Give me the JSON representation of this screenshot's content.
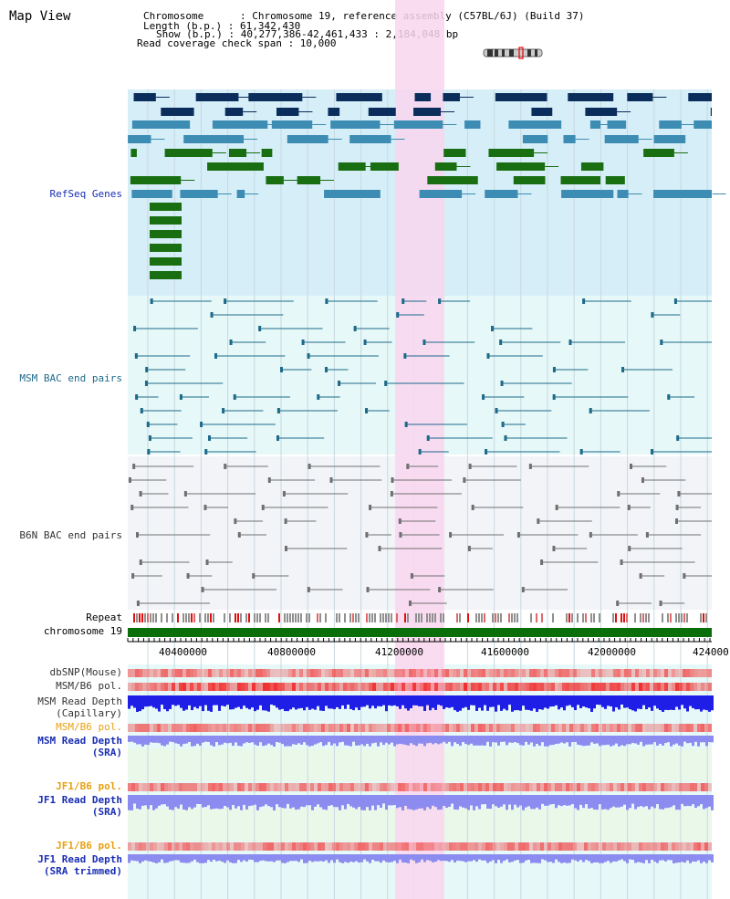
{
  "title": "Map View",
  "info": {
    "chromosome": "Chromosome      : Chromosome 19, reference assembly (C57BL/6J) (Build 37)",
    "length": "Length (b.p.) : 61,342,430",
    "show": "Show (b.p.) : 40,277,386-42,461,433 : 2,184,048 bp",
    "coverage": "Read coverage check span : 10,000"
  },
  "tracks": {
    "refseq": "RefSeq Genes",
    "msm_bac": "MSM BAC end pairs",
    "b6n_bac": "B6N BAC end pairs",
    "repeat": "Repeat",
    "chromosome": "chromosome 19",
    "dbsnp": "dbSNP(Mouse)",
    "msm_b6_pol": "MSM/B6 pol.",
    "msm_depth_cap": "MSM Read Depth",
    "msm_depth_cap2": "(Capillary)",
    "msm_b6_pol2": "MSM/B6 pol.",
    "msm_depth_sra": "MSM Read Depth",
    "msm_depth_sra2": "(SRA)",
    "jf1_b6_pol": "JF1/B6 pol.",
    "jf1_depth_sra": "JF1 Read Depth",
    "jf1_depth_sra2": "(SRA)",
    "jf1_b6_pol2": "JF1/B6 pol.",
    "jf1_depth_trim": "JF1 Read Depth",
    "jf1_depth_trim2": "(SRA trimmed)"
  },
  "axis": {
    "ticks": [
      "40400000",
      "40800000",
      "41200000",
      "41600000",
      "42000000",
      "424000"
    ]
  },
  "colors": {
    "refseq_bg": "#d6eef8",
    "msm_bg": "#e6f8f8",
    "b6n_bg": "#f2f4f8",
    "highlight": "#f9d6ef",
    "gene_navy": "#0a2d5c",
    "gene_blue": "#3c8cb4",
    "gene_green": "#1a6e12",
    "bac_teal": "#1d6a8a",
    "bac_gray": "#707070",
    "snp_red": "#f06464",
    "depth_blue": "#1e1ee6",
    "depth_lilac": "#8c8cf0",
    "chrom_green": "#0a6e0a",
    "label_blue": "#1a2eb4",
    "label_teal": "#1d6a8a",
    "label_gray": "#333333",
    "label_orange": "#e8a010"
  }
}
